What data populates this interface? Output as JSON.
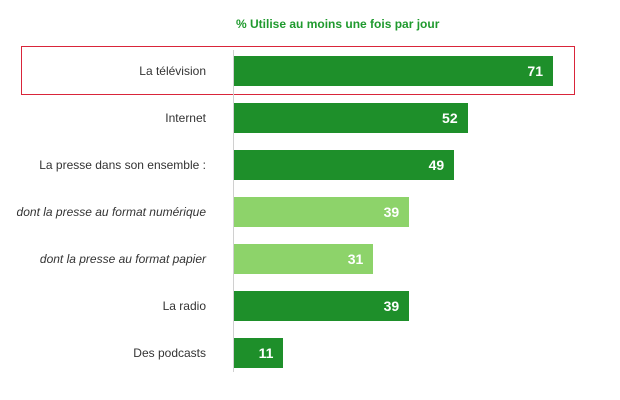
{
  "chart_data": {
    "type": "bar",
    "orientation": "horizontal",
    "title": "% Utilise au moins une fois par jour",
    "categories": [
      "La télévision",
      "Internet",
      "La presse dans son ensemble :",
      "dont la presse au format numérique",
      "dont la presse au format papier",
      "La radio",
      "Des podcasts"
    ],
    "values": [
      71,
      52,
      49,
      39,
      31,
      39,
      11
    ],
    "italic": [
      false,
      false,
      false,
      true,
      true,
      false,
      false
    ],
    "colors": {
      "main": "#1e8f2a",
      "sub": "#8dd36a",
      "highlight_border": "#d9253a",
      "title": "#1f9a2e"
    },
    "xlim": [
      0,
      100
    ],
    "highlighted_category": "La télévision"
  }
}
